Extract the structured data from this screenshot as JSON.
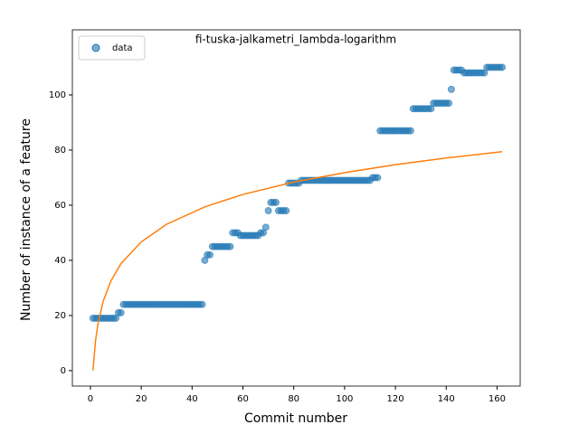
{
  "chart_data": {
    "type": "scatter",
    "title": "fi-tuska-jalkametri_lambda-logarithm",
    "xlabel": "Commit number",
    "ylabel": "Number of instance of a feature",
    "xlim": [
      -7.1,
      169.1
    ],
    "ylim": [
      -5.6,
      123.6
    ],
    "xticks": [
      0,
      20,
      40,
      60,
      80,
      100,
      120,
      140,
      160
    ],
    "yticks": [
      0,
      20,
      40,
      60,
      80,
      100
    ],
    "legend": "upper left",
    "series": [
      {
        "name": "data",
        "color": "#1f77b4",
        "style": "markers",
        "x": [
          1,
          2,
          3,
          4,
          5,
          6,
          7,
          8,
          9,
          10,
          11,
          12,
          13,
          14,
          15,
          16,
          17,
          18,
          19,
          20,
          21,
          22,
          23,
          24,
          25,
          26,
          27,
          28,
          29,
          30,
          31,
          32,
          33,
          34,
          35,
          36,
          37,
          38,
          39,
          40,
          41,
          42,
          43,
          44,
          45,
          46,
          47,
          48,
          49,
          50,
          51,
          52,
          53,
          54,
          55,
          56,
          57,
          58,
          59,
          60,
          61,
          62,
          63,
          64,
          65,
          66,
          67,
          68,
          69,
          70,
          71,
          72,
          73,
          74,
          75,
          76,
          77,
          78,
          79,
          80,
          81,
          82,
          83,
          84,
          85,
          86,
          87,
          88,
          89,
          90,
          91,
          92,
          93,
          94,
          95,
          96,
          97,
          98,
          99,
          100,
          101,
          102,
          103,
          104,
          105,
          106,
          107,
          108,
          109,
          110,
          111,
          112,
          113,
          114,
          115,
          116,
          117,
          118,
          119,
          120,
          121,
          122,
          123,
          124,
          125,
          126,
          127,
          128,
          129,
          130,
          131,
          132,
          133,
          134,
          135,
          136,
          137,
          138,
          139,
          140,
          141,
          142,
          143,
          144,
          145,
          146,
          147,
          148,
          149,
          150,
          151,
          152,
          153,
          154,
          155,
          156,
          157,
          158,
          159,
          160,
          161,
          162
        ],
        "values": [
          19,
          19,
          19,
          19,
          19,
          19,
          19,
          19,
          19,
          19,
          21,
          21,
          24,
          24,
          24,
          24,
          24,
          24,
          24,
          24,
          24,
          24,
          24,
          24,
          24,
          24,
          24,
          24,
          24,
          24,
          24,
          24,
          24,
          24,
          24,
          24,
          24,
          24,
          24,
          24,
          24,
          24,
          24,
          24,
          40,
          42,
          42,
          45,
          45,
          45,
          45,
          45,
          45,
          45,
          45,
          50,
          50,
          50,
          49,
          49,
          49,
          49,
          49,
          49,
          49,
          49,
          50,
          50,
          52,
          58,
          61,
          61,
          61,
          58,
          58,
          58,
          58,
          68,
          68,
          68,
          68,
          68,
          69,
          69,
          69,
          69,
          69,
          69,
          69,
          69,
          69,
          69,
          69,
          69,
          69,
          69,
          69,
          69,
          69,
          69,
          69,
          69,
          69,
          69,
          69,
          69,
          69,
          69,
          69,
          69,
          70,
          70,
          70,
          87,
          87,
          87,
          87,
          87,
          87,
          87,
          87,
          87,
          87,
          87,
          87,
          87,
          95,
          95,
          95,
          95,
          95,
          95,
          95,
          95,
          97,
          97,
          97,
          97,
          97,
          97,
          97,
          102,
          109,
          109,
          109,
          109,
          108,
          108,
          108,
          108,
          108,
          108,
          108,
          108,
          108,
          110,
          110,
          110,
          110,
          110,
          110,
          110
        ]
      },
      {
        "color": "#ff7f0e",
        "style": "line",
        "x": [
          1,
          2,
          3,
          5,
          8,
          12,
          20,
          30,
          45,
          60,
          80,
          100,
          120,
          140,
          162
        ],
        "values": [
          0,
          10.8,
          17.1,
          25.1,
          32.4,
          38.8,
          46.7,
          53.1,
          59.4,
          63.9,
          68.4,
          71.8,
          74.7,
          77.1,
          79.4
        ]
      }
    ]
  }
}
